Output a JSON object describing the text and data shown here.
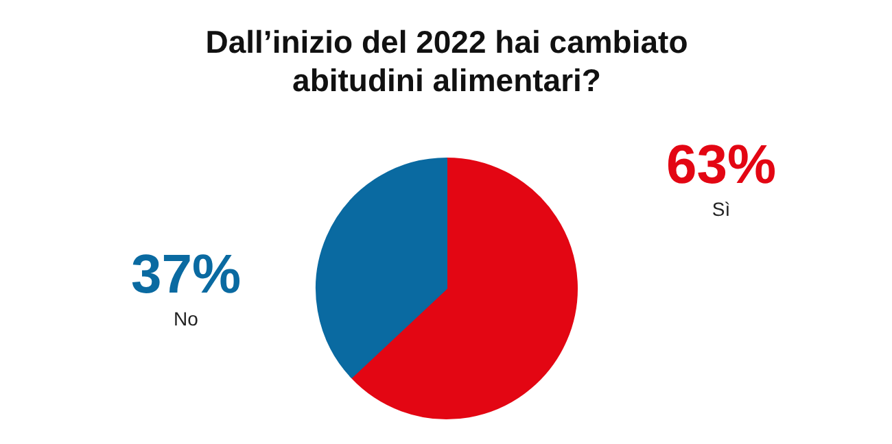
{
  "chart_data": {
    "type": "pie",
    "title": "Dall’inizio del 2022 hai cambiato abitudini alimentari?",
    "categories": [
      "Sì",
      "No"
    ],
    "values": [
      63,
      37
    ],
    "colors": [
      "#e30613",
      "#0a6aa1"
    ],
    "value_labels": [
      "63%",
      "37%"
    ]
  }
}
